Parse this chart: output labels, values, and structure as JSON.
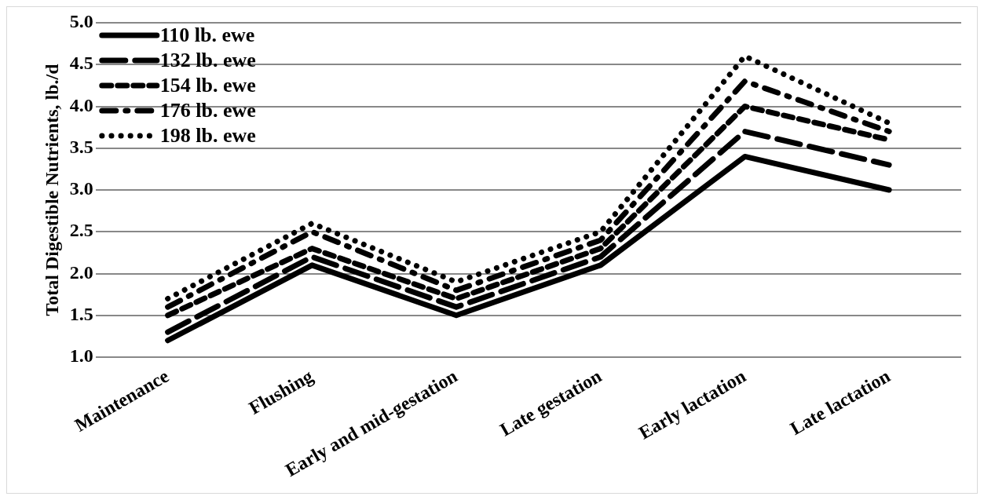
{
  "chart_data": {
    "type": "line",
    "ylabel": "Total Digestible Nutrients, lb./d",
    "categories": [
      "Maintenance",
      "Flushing",
      "Early and mid-gestation",
      "Late gestation",
      "Early lactation",
      "Late lactation"
    ],
    "series": [
      {
        "name": "110 lb. ewe",
        "color": "#000000",
        "line_style": "solid",
        "values": [
          1.2,
          2.1,
          1.5,
          2.1,
          3.4,
          3.0
        ]
      },
      {
        "name": "132 lb. ewe",
        "color": "#000000",
        "line_style": "dashed",
        "values": [
          1.3,
          2.2,
          1.6,
          2.2,
          3.7,
          3.3
        ]
      },
      {
        "name": "154 lb. ewe",
        "color": "#000000",
        "line_style": "dashed",
        "values": [
          1.5,
          2.3,
          1.7,
          2.3,
          4.0,
          3.6
        ]
      },
      {
        "name": "176 lb. ewe",
        "color": "#000000",
        "line_style": "dashed",
        "values": [
          1.6,
          2.5,
          1.8,
          2.4,
          4.3,
          3.7
        ]
      },
      {
        "name": "198 lb. ewe",
        "color": "#000000",
        "line_style": "dotted",
        "values": [
          1.7,
          2.6,
          1.9,
          2.5,
          4.6,
          3.8
        ]
      }
    ],
    "ylim": [
      1,
      5
    ],
    "yticks": [
      {
        "value": 1,
        "label": "1.0"
      },
      {
        "value": 1.5,
        "label": "1.5"
      },
      {
        "value": 2,
        "label": "2.0"
      },
      {
        "value": 2.5,
        "label": "2.5"
      },
      {
        "value": 3,
        "label": "3.0"
      },
      {
        "value": 3.5,
        "label": "3.5"
      },
      {
        "value": 4,
        "label": "4.0"
      },
      {
        "value": 4.5,
        "label": "4.5"
      },
      {
        "value": 5,
        "label": "5.0"
      }
    ],
    "grid": "y",
    "legend": "top left",
    "marker": "none"
  }
}
